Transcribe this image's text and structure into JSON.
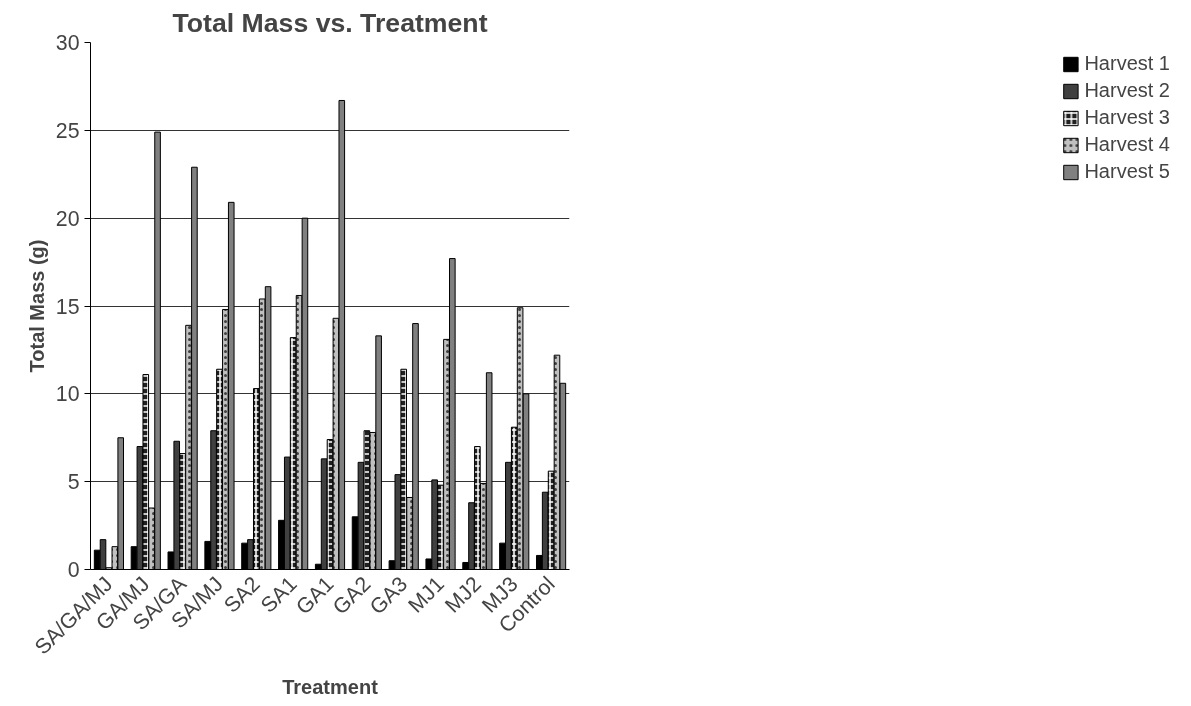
{
  "chart_data": {
    "type": "bar",
    "title": "Total Mass vs. Treatment",
    "xlabel": "Treatment",
    "ylabel": "Total Mass (g)",
    "categories": [
      "SA/GA/MJ",
      "GA/MJ",
      "SA/GA",
      "SA/MJ",
      "SA2",
      "SA1",
      "GA1",
      "GA2",
      "GA3",
      "MJ1",
      "MJ2",
      "MJ3",
      "Control"
    ],
    "series": [
      {
        "name": "Harvest 1",
        "color": "#000000",
        "values": [
          1.1,
          1.3,
          1.0,
          1.6,
          1.5,
          2.8,
          0.3,
          3.0,
          0.5,
          0.6,
          0.4,
          1.5,
          0.8
        ]
      },
      {
        "name": "Harvest 2",
        "color": "#404040",
        "values": [
          1.7,
          7.0,
          7.3,
          7.9,
          1.7,
          6.4,
          6.3,
          6.1,
          5.4,
          5.1,
          3.8,
          6.1,
          4.4
        ]
      },
      {
        "name": "Harvest 3",
        "color": "#202020",
        "values": [
          0.1,
          11.1,
          6.6,
          11.4,
          10.3,
          13.2,
          7.4,
          7.9,
          11.4,
          4.8,
          7.0,
          8.1,
          5.6
        ]
      },
      {
        "name": "Harvest 4",
        "color": "#c0c0c0",
        "values": [
          1.3,
          3.5,
          13.9,
          14.8,
          15.4,
          15.6,
          14.3,
          7.8,
          4.1,
          13.1,
          4.9,
          14.9,
          12.2
        ]
      },
      {
        "name": "Harvest 5",
        "color": "#808080",
        "values": [
          7.5,
          24.9,
          22.9,
          20.9,
          16.1,
          20.0,
          26.7,
          13.3,
          14.0,
          17.7,
          11.2,
          10.0,
          10.6
        ]
      }
    ],
    "ylim": [
      0,
      30
    ],
    "yticks": [
      0,
      5,
      10,
      15,
      20,
      25,
      30
    ],
    "grid": "y",
    "legend": "top right"
  }
}
